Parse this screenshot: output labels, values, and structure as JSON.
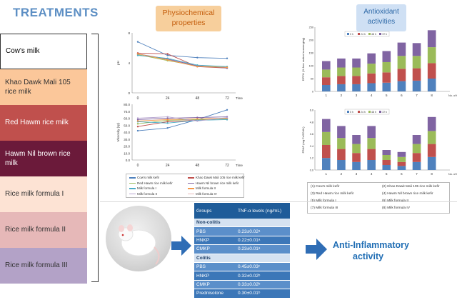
{
  "treatments": {
    "title": "TREATMENTS",
    "items": [
      {
        "label": "Cow's milk",
        "bg": "#ffffff",
        "fg": "#000000"
      },
      {
        "label": "Khao Dawk Mali 105 rice milk",
        "bg": "#fbc79a",
        "fg": "#333333"
      },
      {
        "label": "Red Hawm rice milk",
        "bg": "#c0504d",
        "fg": "#ffffff"
      },
      {
        "label": "Hawm Nil brown rice milk",
        "bg": "#6b1a3a",
        "fg": "#ffffff"
      },
      {
        "label": "Rice milk formula I",
        "bg": "#fde3d4",
        "fg": "#333333"
      },
      {
        "label": "Rice milk  formula  II",
        "bg": "#e6b8b8",
        "fg": "#333333"
      },
      {
        "label": "Rice milk  formula  III",
        "bg": "#b3a2c7",
        "fg": "#333333"
      }
    ]
  },
  "physio": {
    "title": "Physiochemical properties",
    "ph_chart": {
      "ylabel": "pH",
      "xlabel": "Time (h)",
      "xticks": [
        "0",
        "24",
        "48",
        "72"
      ],
      "yticks": [
        "8",
        "4",
        "0"
      ]
    },
    "visc_chart": {
      "ylabel": "Viscosity (cp)",
      "xlabel": "Time (h)",
      "xticks": [
        "0",
        "24",
        "48",
        "72"
      ],
      "yticks": [
        "80.0",
        "70.0",
        "60.0",
        "50.0",
        "40.0",
        "30.0",
        "20.0",
        "10.0",
        "0.0"
      ]
    },
    "legend": [
      {
        "label": "Cow's milk kefir",
        "color": "#4f81bd"
      },
      {
        "label": "Khao Dawk Mali 105 rice milk kefir",
        "color": "#c0504d"
      },
      {
        "label": "Red Hawm rice milk kefir",
        "color": "#9bbb59"
      },
      {
        "label": "Hawm Nil brown rice milk kefir",
        "color": "#8064a2"
      },
      {
        "label": "Milk formula I",
        "color": "#4bacc6"
      },
      {
        "label": "Milk formula II",
        "color": "#f79646"
      },
      {
        "label": "Milk formula II",
        "color": "#b7a5d0"
      },
      {
        "label": "Milk formula IV",
        "color": "#e6b9b8"
      }
    ]
  },
  "antioxidant": {
    "title": "Antioxidant activities",
    "dpph_ylabel": "DPPH (% free radical scavenging)",
    "frap_ylabel": "FRAP (mg FeSO4/L)",
    "xlabel": "No. of treatments",
    "series_labels": [
      "0 h",
      "24 h",
      "48 h",
      "72 h"
    ],
    "series_colors": [
      "#4f81bd",
      "#c0504d",
      "#9bbb59",
      "#8064a2"
    ],
    "categories": [
      "1",
      "2",
      "3",
      "4",
      "5",
      "6",
      "7",
      "8"
    ],
    "legend": [
      "(1) Cow's milk kefir",
      "(2)  Khao Dawk Mali 105 rice milk kefir",
      "(3) Red Hawm rice milk kefir",
      "(4)  Hawm Nil brown rice milk kefir",
      "(5) Milk formula I",
      "(6) Milk formula II",
      "(7) Milk formula III",
      "(8) Milk formula IV"
    ]
  },
  "table": {
    "header": [
      "Groups",
      "TNF-α levels (ng/mL)"
    ],
    "rows": [
      {
        "type": "section",
        "label": "Non-colitis",
        "value": ""
      },
      {
        "type": "data",
        "label": "PBS",
        "value": "0.23±0.02ᵃ"
      },
      {
        "type": "data",
        "label": "HNKP",
        "value": "0.22±0.01ᵃ"
      },
      {
        "type": "data",
        "label": "CMKP",
        "value": "0.23±0.01ᵃ"
      },
      {
        "type": "section",
        "label": "Colitis",
        "value": ""
      },
      {
        "type": "data",
        "label": "PBS",
        "value": "0.45±0.03ᶜ"
      },
      {
        "type": "data",
        "label": "HNKP",
        "value": "0.32±0.02ᵇ"
      },
      {
        "type": "data",
        "label": "CMKP",
        "value": "0.33±0.02ᵇ"
      },
      {
        "type": "data",
        "label": "Prednisolone",
        "value": "0.30±0.01ᵇ"
      }
    ]
  },
  "anti_inflam": {
    "line1": "Anti-Inflammatory",
    "line2": "activity"
  },
  "chart_data": [
    {
      "type": "line",
      "x": [
        0,
        24,
        48,
        72
      ],
      "xlabel": "Time (h)",
      "ylabel": "pH",
      "ylim": [
        0,
        8
      ],
      "series": [
        {
          "values": [
            6.8,
            5.0,
            4.7,
            4.6
          ]
        },
        {
          "values": [
            5.3,
            5.2,
            3.5,
            3.3
          ]
        },
        {
          "values": [
            5.1,
            4.3,
            3.6,
            3.4
          ]
        },
        {
          "values": [
            5.2,
            4.5,
            3.6,
            3.3
          ]
        },
        {
          "values": [
            5.0,
            4.6,
            3.7,
            3.5
          ]
        },
        {
          "values": [
            5.2,
            4.4,
            3.5,
            3.4
          ]
        }
      ]
    },
    {
      "type": "line",
      "x": [
        0,
        24,
        48,
        72
      ],
      "xlabel": "Time (h)",
      "ylabel": "Viscosity (cp)",
      "ylim": [
        0,
        80
      ],
      "series": [
        {
          "values": [
            42,
            46,
            58,
            72
          ]
        },
        {
          "values": [
            48,
            55,
            57,
            60
          ]
        },
        {
          "values": [
            52,
            57,
            58,
            59
          ]
        },
        {
          "values": [
            58,
            60,
            61,
            62
          ]
        },
        {
          "values": [
            55,
            53,
            57,
            58
          ]
        },
        {
          "values": [
            56,
            58,
            59,
            60
          ]
        },
        {
          "values": [
            60,
            62,
            56,
            61
          ]
        }
      ]
    },
    {
      "type": "bar",
      "stacked": true,
      "categories": [
        "1",
        "2",
        "3",
        "4",
        "5",
        "6",
        "7",
        "8"
      ],
      "ylabel": "DPPH (% free radical scavenging)",
      "xlabel": "No. of treatments",
      "ylim": [
        0,
        250
      ],
      "series": [
        {
          "name": "0 h",
          "values": [
            25,
            28,
            28,
            32,
            34,
            40,
            42,
            50
          ]
        },
        {
          "name": "24 h",
          "values": [
            30,
            32,
            32,
            38,
            40,
            48,
            48,
            60
          ]
        },
        {
          "name": "48 h",
          "values": [
            30,
            33,
            33,
            38,
            40,
            50,
            48,
            62
          ]
        },
        {
          "name": "72 h",
          "values": [
            33,
            35,
            35,
            40,
            43,
            52,
            50,
            66
          ]
        }
      ]
    },
    {
      "type": "bar",
      "stacked": true,
      "categories": [
        "1",
        "2",
        "3",
        "4",
        "5",
        "6",
        "7",
        "8"
      ],
      "ylabel": "FRAP (mg FeSO4/L)",
      "xlabel": "No. of treatments",
      "ylim": [
        0,
        6
      ],
      "series": [
        {
          "name": "0 h",
          "values": [
            1.2,
            1.0,
            0.8,
            1.0,
            0.5,
            0.4,
            0.8,
            1.3
          ]
        },
        {
          "name": "24 h",
          "values": [
            1.3,
            1.1,
            0.9,
            1.1,
            0.5,
            0.4,
            0.9,
            1.3
          ]
        },
        {
          "name": "48 h",
          "values": [
            1.3,
            1.1,
            0.9,
            1.1,
            0.5,
            0.5,
            0.9,
            1.3
          ]
        },
        {
          "name": "72 h",
          "values": [
            1.3,
            1.2,
            0.9,
            1.2,
            0.5,
            0.5,
            0.9,
            1.4
          ]
        }
      ]
    }
  ]
}
